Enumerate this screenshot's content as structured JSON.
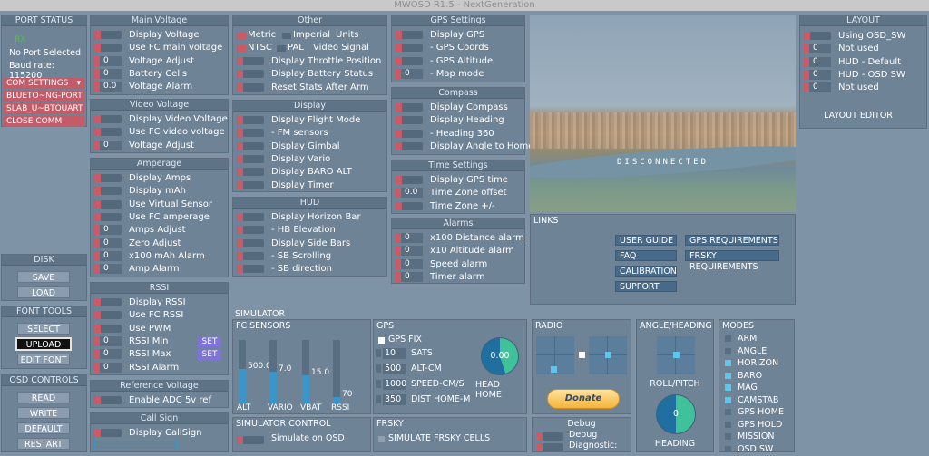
{
  "app_title": "MWOSD R1.5 - NextGeneration",
  "port": {
    "header": "PORT STATUS",
    "rx": "RX",
    "no_port": "No Port Selected",
    "baud": "Baud rate: 115200",
    "com_settings": "COM SETTINGS",
    "ports": [
      "BLUETO~NG-PORT",
      "SLAB_U~BTOUART",
      "CLOSE COMM"
    ]
  },
  "disk": {
    "header": "DISK",
    "save": "SAVE",
    "load": "LOAD"
  },
  "font_tools": {
    "header": "FONT TOOLS",
    "select": "SELECT",
    "upload": "UPLOAD",
    "edit": "EDIT FONT"
  },
  "osd_controls": {
    "header": "OSD CONTROLS",
    "read": "READ",
    "write": "WRITE",
    "default": "DEFAULT",
    "restart": "RESTART"
  },
  "main_voltage": {
    "header": "Main Voltage",
    "rows": [
      {
        "k": "t",
        "label": "Display Voltage"
      },
      {
        "k": "t",
        "label": "Use FC main voltage"
      },
      {
        "k": "n",
        "val": "0",
        "label": "Voltage Adjust"
      },
      {
        "k": "n",
        "val": "0",
        "label": "Battery Cells"
      },
      {
        "k": "n",
        "val": "0.0",
        "label": "Voltage Alarm"
      }
    ]
  },
  "video_voltage": {
    "header": "Video Voltage",
    "rows": [
      {
        "k": "t",
        "label": "Display Video Voltage"
      },
      {
        "k": "t",
        "label": "Use FC video voltage"
      },
      {
        "k": "n",
        "val": "0",
        "label": "Voltage Adjust"
      }
    ]
  },
  "amperage": {
    "header": "Amperage",
    "rows": [
      {
        "k": "t",
        "label": "Display Amps"
      },
      {
        "k": "t",
        "label": "Display mAh"
      },
      {
        "k": "t",
        "label": "Use Virtual Sensor"
      },
      {
        "k": "t",
        "label": "Use FC amperage"
      },
      {
        "k": "n",
        "val": "0",
        "label": "Amps Adjust"
      },
      {
        "k": "n",
        "val": "0",
        "label": "Zero Adjust"
      },
      {
        "k": "n",
        "val": "0",
        "label": "x100 mAh Alarm"
      },
      {
        "k": "n",
        "val": "0",
        "label": "Amp Alarm"
      }
    ]
  },
  "rssi": {
    "header": "RSSI",
    "rows": [
      {
        "k": "t",
        "label": "Display RSSI"
      },
      {
        "k": "t",
        "label": "Use FC RSSI"
      },
      {
        "k": "t",
        "label": "Use PWM"
      },
      {
        "k": "n",
        "val": "0",
        "label": "RSSI Min"
      },
      {
        "k": "n",
        "val": "0",
        "label": "RSSI Max"
      },
      {
        "k": "n",
        "val": "0",
        "label": "RSSI Alarm"
      }
    ],
    "set": "SET"
  },
  "ref_voltage": {
    "header": "Reference Voltage",
    "rows": [
      {
        "k": "t",
        "label": "Enable ADC 5v ref"
      }
    ]
  },
  "call_sign": {
    "header": "Call Sign",
    "rows": [
      {
        "k": "t",
        "label": "Display CallSign"
      }
    ]
  },
  "other": {
    "header": "Other",
    "metric": "Metric",
    "imperial": "Imperial",
    "units": "Units",
    "ntsc": "NTSC",
    "pal": "PAL",
    "video_signal": "Video Signal",
    "rows": [
      {
        "k": "t",
        "label": "Display Throttle Position"
      },
      {
        "k": "t",
        "label": "Display Battery Status"
      },
      {
        "k": "t",
        "label": "Reset Stats After Arm"
      }
    ]
  },
  "display": {
    "header": "Display",
    "rows": [
      {
        "k": "t",
        "label": "Display Flight Mode"
      },
      {
        "k": "t",
        "label": "- FM sensors"
      },
      {
        "k": "t",
        "label": "Display Gimbal"
      },
      {
        "k": "t",
        "label": "Display Vario"
      },
      {
        "k": "t",
        "label": "Display BARO ALT"
      },
      {
        "k": "t",
        "label": "Display Timer"
      }
    ]
  },
  "hud": {
    "header": "HUD",
    "rows": [
      {
        "k": "t",
        "label": "Display Horizon Bar"
      },
      {
        "k": "t",
        "label": "- HB Elevation"
      },
      {
        "k": "t",
        "label": "Display Side Bars"
      },
      {
        "k": "t",
        "label": "- SB Scrolling"
      },
      {
        "k": "t",
        "label": "- SB direction"
      }
    ]
  },
  "gps_settings": {
    "header": "GPS Settings",
    "rows": [
      {
        "k": "t",
        "label": "Display GPS"
      },
      {
        "k": "t",
        "label": "- GPS Coords"
      },
      {
        "k": "t",
        "label": "- GPS Altitude"
      },
      {
        "k": "n",
        "val": "0",
        "label": "- Map mode"
      }
    ]
  },
  "compass": {
    "header": "Compass",
    "rows": [
      {
        "k": "t",
        "label": "Display Compass"
      },
      {
        "k": "t",
        "label": "Display Heading"
      },
      {
        "k": "t",
        "label": "- Heading 360"
      },
      {
        "k": "t",
        "label": "Display Angle to Home"
      }
    ]
  },
  "time_settings": {
    "header": "Time Settings",
    "rows": [
      {
        "k": "t",
        "label": "Display GPS time"
      },
      {
        "k": "n",
        "val": "0.0",
        "label": "Time Zone offset"
      },
      {
        "k": "t",
        "label": "Time Zone +/-"
      }
    ]
  },
  "alarms": {
    "header": "Alarms",
    "rows": [
      {
        "k": "n",
        "val": "0",
        "label": "x100 Distance alarm"
      },
      {
        "k": "n",
        "val": "0",
        "label": "x10   Altitude alarm"
      },
      {
        "k": "n",
        "val": "0",
        "label": "Speed alarm"
      },
      {
        "k": "n",
        "val": "0",
        "label": "Timer alarm"
      }
    ]
  },
  "preview": {
    "status": "DISCONNECTED"
  },
  "layout": {
    "header": "LAYOUT",
    "rows": [
      {
        "k": "t",
        "label": "Using OSD_SW"
      },
      {
        "k": "n",
        "val": "0",
        "label": "Not used"
      },
      {
        "k": "n",
        "val": "0",
        "label": "HUD - Default"
      },
      {
        "k": "n",
        "val": "0",
        "label": "HUD - OSD SW"
      },
      {
        "k": "n",
        "val": "0",
        "label": "Not used"
      }
    ],
    "editor": "LAYOUT EDITOR"
  },
  "links": {
    "header": "LINKS",
    "left": [
      "USER GUIDE",
      "FAQ",
      "CALIBRATION",
      "SUPPORT"
    ],
    "right": [
      "GPS REQUIREMENTS",
      "FRSKY REQUIREMENTS"
    ]
  },
  "simulator": {
    "header": "SIMULATOR",
    "fc_sensors": "FC SENSORS",
    "sensors": [
      {
        "name": "ALT",
        "value": "500.0",
        "fill": 0.55
      },
      {
        "name": "VARIO",
        "value": "7.0",
        "fill": 0.5
      },
      {
        "name": "VBAT",
        "value": "15.0",
        "fill": 0.45
      },
      {
        "name": "RSSI",
        "value": "70",
        "fill": 0.1
      }
    ],
    "gps": {
      "header": "GPS",
      "fix": "GPS FIX",
      "rows": [
        {
          "val": "10",
          "label": "SATS"
        },
        {
          "val": "500",
          "label": "ALT-CM"
        },
        {
          "val": "1000",
          "label": "SPEED-CM/S"
        },
        {
          "val": "350",
          "label": "DIST HOME-M"
        }
      ],
      "head_home": "HEAD HOME",
      "head_value": "0.00"
    },
    "radio": {
      "header": "RADIO",
      "donate": "Donate"
    },
    "angle": {
      "header": "ANGLE/HEADING",
      "roll_pitch": "ROLL/PITCH",
      "heading": "HEADING",
      "heading_value": "0"
    },
    "modes": {
      "header": "MODES",
      "items": [
        {
          "label": "ARM",
          "on": false
        },
        {
          "label": "ANGLE",
          "on": false
        },
        {
          "label": "HORIZON",
          "on": true
        },
        {
          "label": "BARO",
          "on": true
        },
        {
          "label": "MAG",
          "on": true
        },
        {
          "label": "CAMSTAB",
          "on": true
        },
        {
          "label": "GPS HOME",
          "on": false
        },
        {
          "label": "GPS HOLD",
          "on": false
        },
        {
          "label": "MISSION",
          "on": false
        },
        {
          "label": "OSD SW",
          "on": false
        }
      ]
    },
    "sim_control": {
      "header": "SIMULATOR CONTROL",
      "label": "Simulate on OSD"
    },
    "frsky": {
      "header": "FRSKY",
      "label": "SIMULATE FRSKY CELLS"
    },
    "debug": {
      "header": "Debug",
      "debug": "Debug",
      "diagnostic": "Diagnostic:"
    }
  },
  "colors": {
    "toggle_red": "#cc5a66",
    "accent_blue": "#3b95c8",
    "set_purple": "#7d73d8",
    "mode_on": "#5ec6ea"
  }
}
